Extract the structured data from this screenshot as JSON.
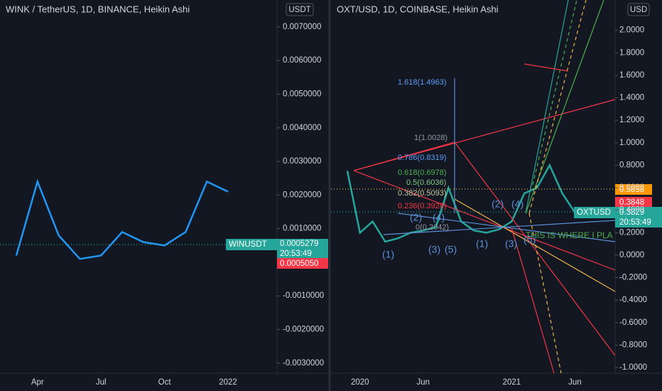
{
  "chart_data": [
    {
      "type": "line",
      "title": "WINK / TetherUS, 1D, BINANCE, Heikin Ashi",
      "currency": "USDT",
      "categories": [
        null,
        "Apr",
        null,
        null,
        "Jul",
        null,
        null,
        "Oct",
        null,
        null,
        "2022"
      ],
      "series": [
        {
          "name": "WINUSDT",
          "color": "#2196f3",
          "values": [
            0.0002,
            0.0024,
            0.0008,
            0.0001,
            0.0002,
            0.0009,
            0.0006,
            0.0005,
            0.0009,
            0.0024,
            0.0021
          ]
        }
      ],
      "ylim": [
        -0.0033,
        0.0078
      ],
      "yticks": [
        {
          "value": 0.007,
          "label": "0.0070000"
        },
        {
          "value": 0.006,
          "label": "0.0060000"
        },
        {
          "value": 0.005,
          "label": "0.0050000"
        },
        {
          "value": 0.004,
          "label": "0.0040000"
        },
        {
          "value": 0.003,
          "label": "0.0030000"
        },
        {
          "value": 0.002,
          "label": "0.0020000"
        },
        {
          "value": 0.001,
          "label": "0.0010000"
        },
        {
          "value": -0.001,
          "label": "-0.0010000"
        },
        {
          "value": -0.002,
          "label": "-0.0020000"
        },
        {
          "value": -0.003,
          "label": "-0.0030000"
        }
      ],
      "price_tags": [
        "WINUSDT",
        "0.0005279",
        "20:53:49",
        "0.0005050"
      ]
    },
    {
      "type": "line",
      "title": "OXT/USD, 1D, COINBASE, Heikin Ashi",
      "currency": "USD",
      "categories": [
        null,
        "2020",
        null,
        null,
        null,
        null,
        "Jun",
        null,
        null,
        null,
        null,
        null,
        null,
        "2021",
        null,
        null,
        null,
        null,
        "Jun"
      ],
      "series": [
        {
          "name": "OXTUSD",
          "color": "#26a69a",
          "values": [
            0.75,
            0.2,
            0.3,
            0.12,
            0.15,
            0.2,
            0.22,
            0.25,
            0.6,
            0.3,
            0.22,
            0.2,
            0.23,
            0.3,
            0.55,
            0.6,
            0.8,
            0.55,
            0.38
          ]
        }
      ],
      "ylim": [
        -1.05,
        2.27
      ],
      "yticks": [
        {
          "value": 2.0,
          "label": "2.0000"
        },
        {
          "value": 1.8,
          "label": "1.8000"
        },
        {
          "value": 1.6,
          "label": "1.6000"
        },
        {
          "value": 1.4,
          "label": "1.4000"
        },
        {
          "value": 1.2,
          "label": "1.2000"
        },
        {
          "value": 1.0,
          "label": "1.0000"
        },
        {
          "value": 0.8,
          "label": "0.8000"
        },
        {
          "value": 0.6,
          "label": "0.6000"
        },
        {
          "value": 0.4,
          "label": "0.4000"
        },
        {
          "value": 0.2,
          "label": "0.2000"
        },
        {
          "value": 0,
          "label": "0.0000"
        },
        {
          "value": -0.2,
          "label": "-0.2000"
        },
        {
          "value": -0.4,
          "label": "-0.4000"
        },
        {
          "value": -0.6,
          "label": "-0.6000"
        },
        {
          "value": -0.8,
          "label": "-0.8000"
        },
        {
          "value": -1.0,
          "label": "-1.0000"
        }
      ],
      "fib_labels": [
        "1.618(1.4963)",
        "1(1.0028)",
        "0.786(0.8319)",
        "0.618(0.6978)",
        "0.5(0.6036)",
        "0.382(0.5093)",
        "0.236(0.3928)",
        "0(0.2042)"
      ],
      "wave_labels": [
        "(1)",
        "(2)",
        "(3)",
        "(4)",
        "(5)",
        "(1)",
        "(2)",
        "(3)",
        "(4)",
        "(5)"
      ],
      "note": "THIS IS WHERE I PLA",
      "price_tags": [
        "0.5858",
        "0.3848",
        "OXTUSD",
        "0.3829",
        "20:53:49"
      ]
    }
  ]
}
